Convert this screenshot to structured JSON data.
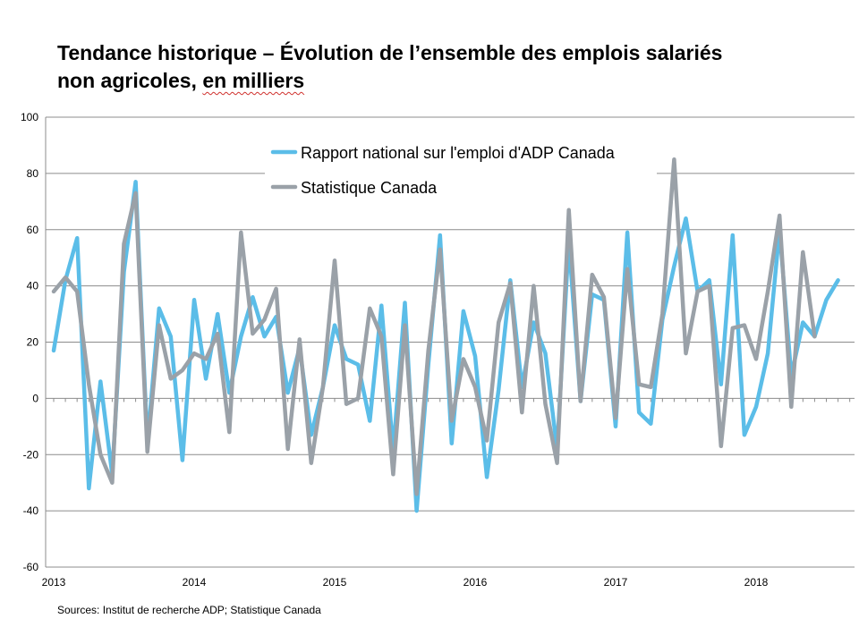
{
  "title": {
    "line1": "Tendance historique – Évolution de l’ensemble des emplois salariés",
    "line2_pre": "non agricoles, ",
    "line2_underlined": "en milliers"
  },
  "source": "Sources: Institut de recherche ADP; Statistique Canada",
  "chart_data": {
    "type": "line",
    "x_start": "2013-01",
    "x_ticks": [
      "2013",
      "2014",
      "2015",
      "2016",
      "2017",
      "2018"
    ],
    "ylim": [
      -60,
      100
    ],
    "y_ticks": [
      "-60",
      "-40",
      "-20",
      "0",
      "20",
      "40",
      "60",
      "80",
      "100"
    ],
    "grid": true,
    "legend_position": "top-center",
    "series": [
      {
        "name": "Rapport national sur l'emploi d'ADP Canada",
        "color": "#5bbde8",
        "values": [
          17,
          42,
          57,
          -32,
          6,
          -27,
          45,
          77,
          -16,
          32,
          22,
          -22,
          35,
          7,
          30,
          2,
          22,
          36,
          22,
          29,
          2,
          18,
          -13,
          4,
          26,
          14,
          12,
          -8,
          33,
          -19,
          34,
          -40,
          12,
          58,
          -16,
          31,
          15,
          -28,
          3,
          42,
          4,
          27,
          16,
          -18,
          56,
          -1,
          37,
          35,
          -10,
          59,
          -5,
          -9,
          28,
          47,
          64,
          38,
          42,
          5,
          58,
          -13,
          -3,
          16,
          60,
          8,
          27,
          22,
          35,
          42
        ]
      },
      {
        "name": "Statistique Canada",
        "color": "#9aa1a8",
        "values": [
          38,
          43,
          38,
          5,
          -20,
          -30,
          55,
          73,
          -19,
          26,
          7,
          10,
          16,
          14,
          23,
          -12,
          59,
          23,
          28,
          39,
          -18,
          21,
          -23,
          4,
          49,
          -2,
          0,
          32,
          22,
          -27,
          26,
          -34,
          17,
          53,
          -8,
          14,
          4,
          -15,
          27,
          41,
          -5,
          40,
          -2,
          -23,
          67,
          -1,
          44,
          36,
          -7,
          46,
          5,
          4,
          30,
          85,
          16,
          38,
          40,
          -17,
          25,
          26,
          14,
          38,
          65,
          -3,
          52,
          22
        ]
      }
    ]
  }
}
